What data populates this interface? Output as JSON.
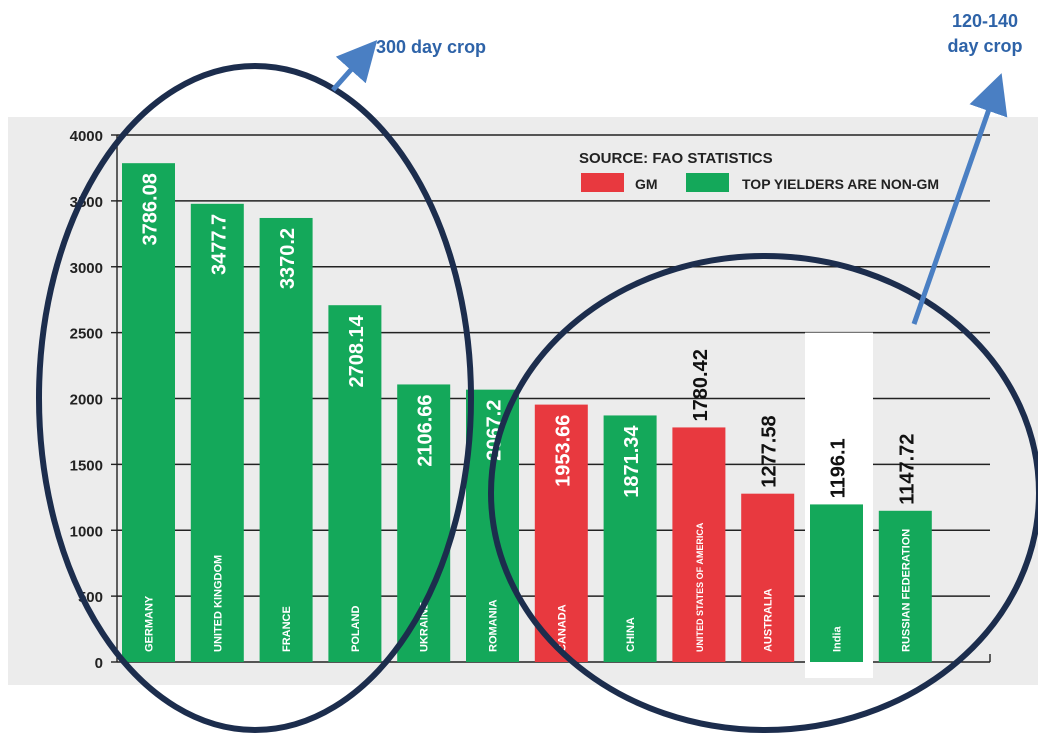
{
  "chart_data": {
    "type": "bar",
    "categories": [
      "GERMANY",
      "UNITED KINGDOM",
      "FRANCE",
      "POLAND",
      "UKRAINE",
      "ROMANIA",
      "CANADA",
      "CHINA",
      "UNITED STATES OF AMERICA",
      "AUSTRALIA",
      "India",
      "RUSSIAN FEDERATION"
    ],
    "values": [
      3786.08,
      3477.7,
      3370.2,
      2708.14,
      2106.66,
      2067.2,
      1953.66,
      1871.34,
      1780.42,
      1277.58,
      1196.1,
      1147.72
    ],
    "value_labels": [
      "3786.08",
      "3477.7",
      "3370.2",
      "2708.14",
      "2106.66",
      "2067.2",
      "1953.66",
      "1871.34",
      "1780.42",
      "1277.58",
      "1196.1",
      "1147.72"
    ],
    "types": [
      "non-GM",
      "non-GM",
      "non-GM",
      "non-GM",
      "non-GM",
      "non-GM",
      "GM",
      "non-GM",
      "GM",
      "GM",
      "non-GM",
      "non-GM"
    ],
    "ylim": [
      0,
      4000
    ],
    "yticks": [
      "0",
      "500",
      "1000",
      "1500",
      "2000",
      "2500",
      "3000",
      "3500",
      "4000"
    ],
    "grid": true,
    "legend": {
      "source": "SOURCE: FAO STATISTICS",
      "gm_label": "GM",
      "nongm_label": "TOP YIELDERS ARE NON-GM",
      "placement": "top-right"
    },
    "colors": {
      "gm": "#e8393f",
      "nongm": "#14a85a",
      "panel": "#ececec",
      "annotation": "#2e63a8",
      "ellipse": "#1c2d4d"
    },
    "annotations": [
      {
        "text": "300 day crop",
        "target": "GERMANY to ROMANIA"
      },
      {
        "line1": "120-140",
        "line2": "day crop",
        "target": "CANADA to RUSSIAN FEDERATION"
      }
    ]
  }
}
